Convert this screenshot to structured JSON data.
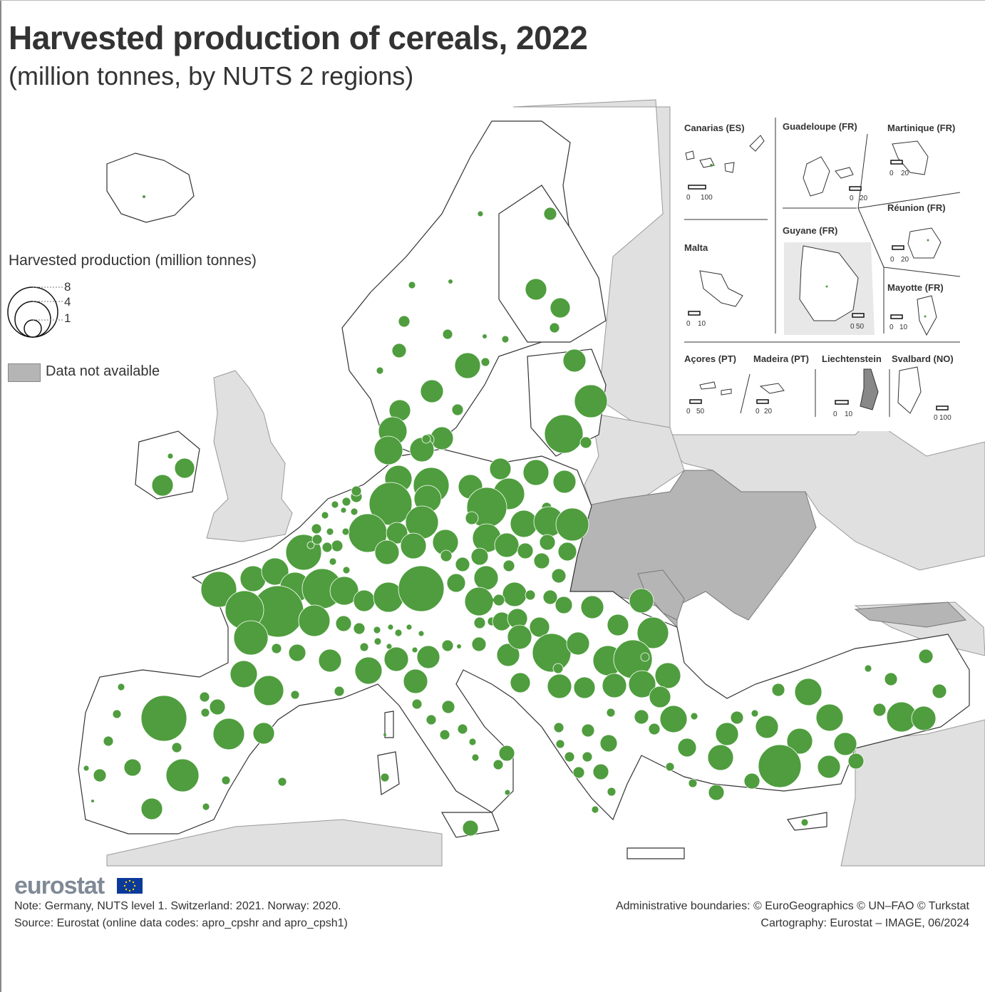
{
  "title": "Harvested production of cereals, 2022",
  "subtitle": "(million tonnes, by NUTS 2 regions)",
  "legend": {
    "title": "Harvested production (million tonnes)",
    "values": [
      "8",
      "4",
      "1"
    ],
    "na_label": "Data not available",
    "symbol_color": "#4f9d3e",
    "na_color": "#b5b5b5"
  },
  "insets": [
    {
      "name": "Canarias (ES)",
      "scale": [
        "0",
        "100"
      ]
    },
    {
      "name": "Guadeloupe (FR)",
      "scale": [
        "0",
        "20"
      ]
    },
    {
      "name": "Martinique (FR)",
      "scale": [
        "0",
        "20"
      ]
    },
    {
      "name": "Guyane (FR)",
      "scale": [
        "0",
        "50"
      ]
    },
    {
      "name": "Réunion (FR)",
      "scale": [
        "0",
        "20"
      ]
    },
    {
      "name": "Malta",
      "scale": [
        "0",
        "10"
      ]
    },
    {
      "name": "Mayotte (FR)",
      "scale": [
        "0",
        "10"
      ]
    },
    {
      "name": "Açores (PT)",
      "scale": [
        "0",
        "50"
      ]
    },
    {
      "name": "Madeira (PT)",
      "scale": [
        "0",
        "20"
      ]
    },
    {
      "name": "Liechtenstein",
      "scale": [
        "0",
        "10"
      ]
    },
    {
      "name": "Svalbard (NO)",
      "scale": [
        "0",
        "100"
      ]
    }
  ],
  "footer": {
    "brand": "eurostat",
    "note": "Note: Germany, NUTS level 1. Switzerland: 2021. Norway: 2020.",
    "source": "Source: Eurostat (online data codes: apro_cpshr and apro_cpsh1)",
    "credit_boundaries": "Administrative boundaries: © EuroGeographics © UN–FAO © Turkstat",
    "credit_cartography": "Cartography: Eurostat – IMAGE, 06/2024"
  }
}
